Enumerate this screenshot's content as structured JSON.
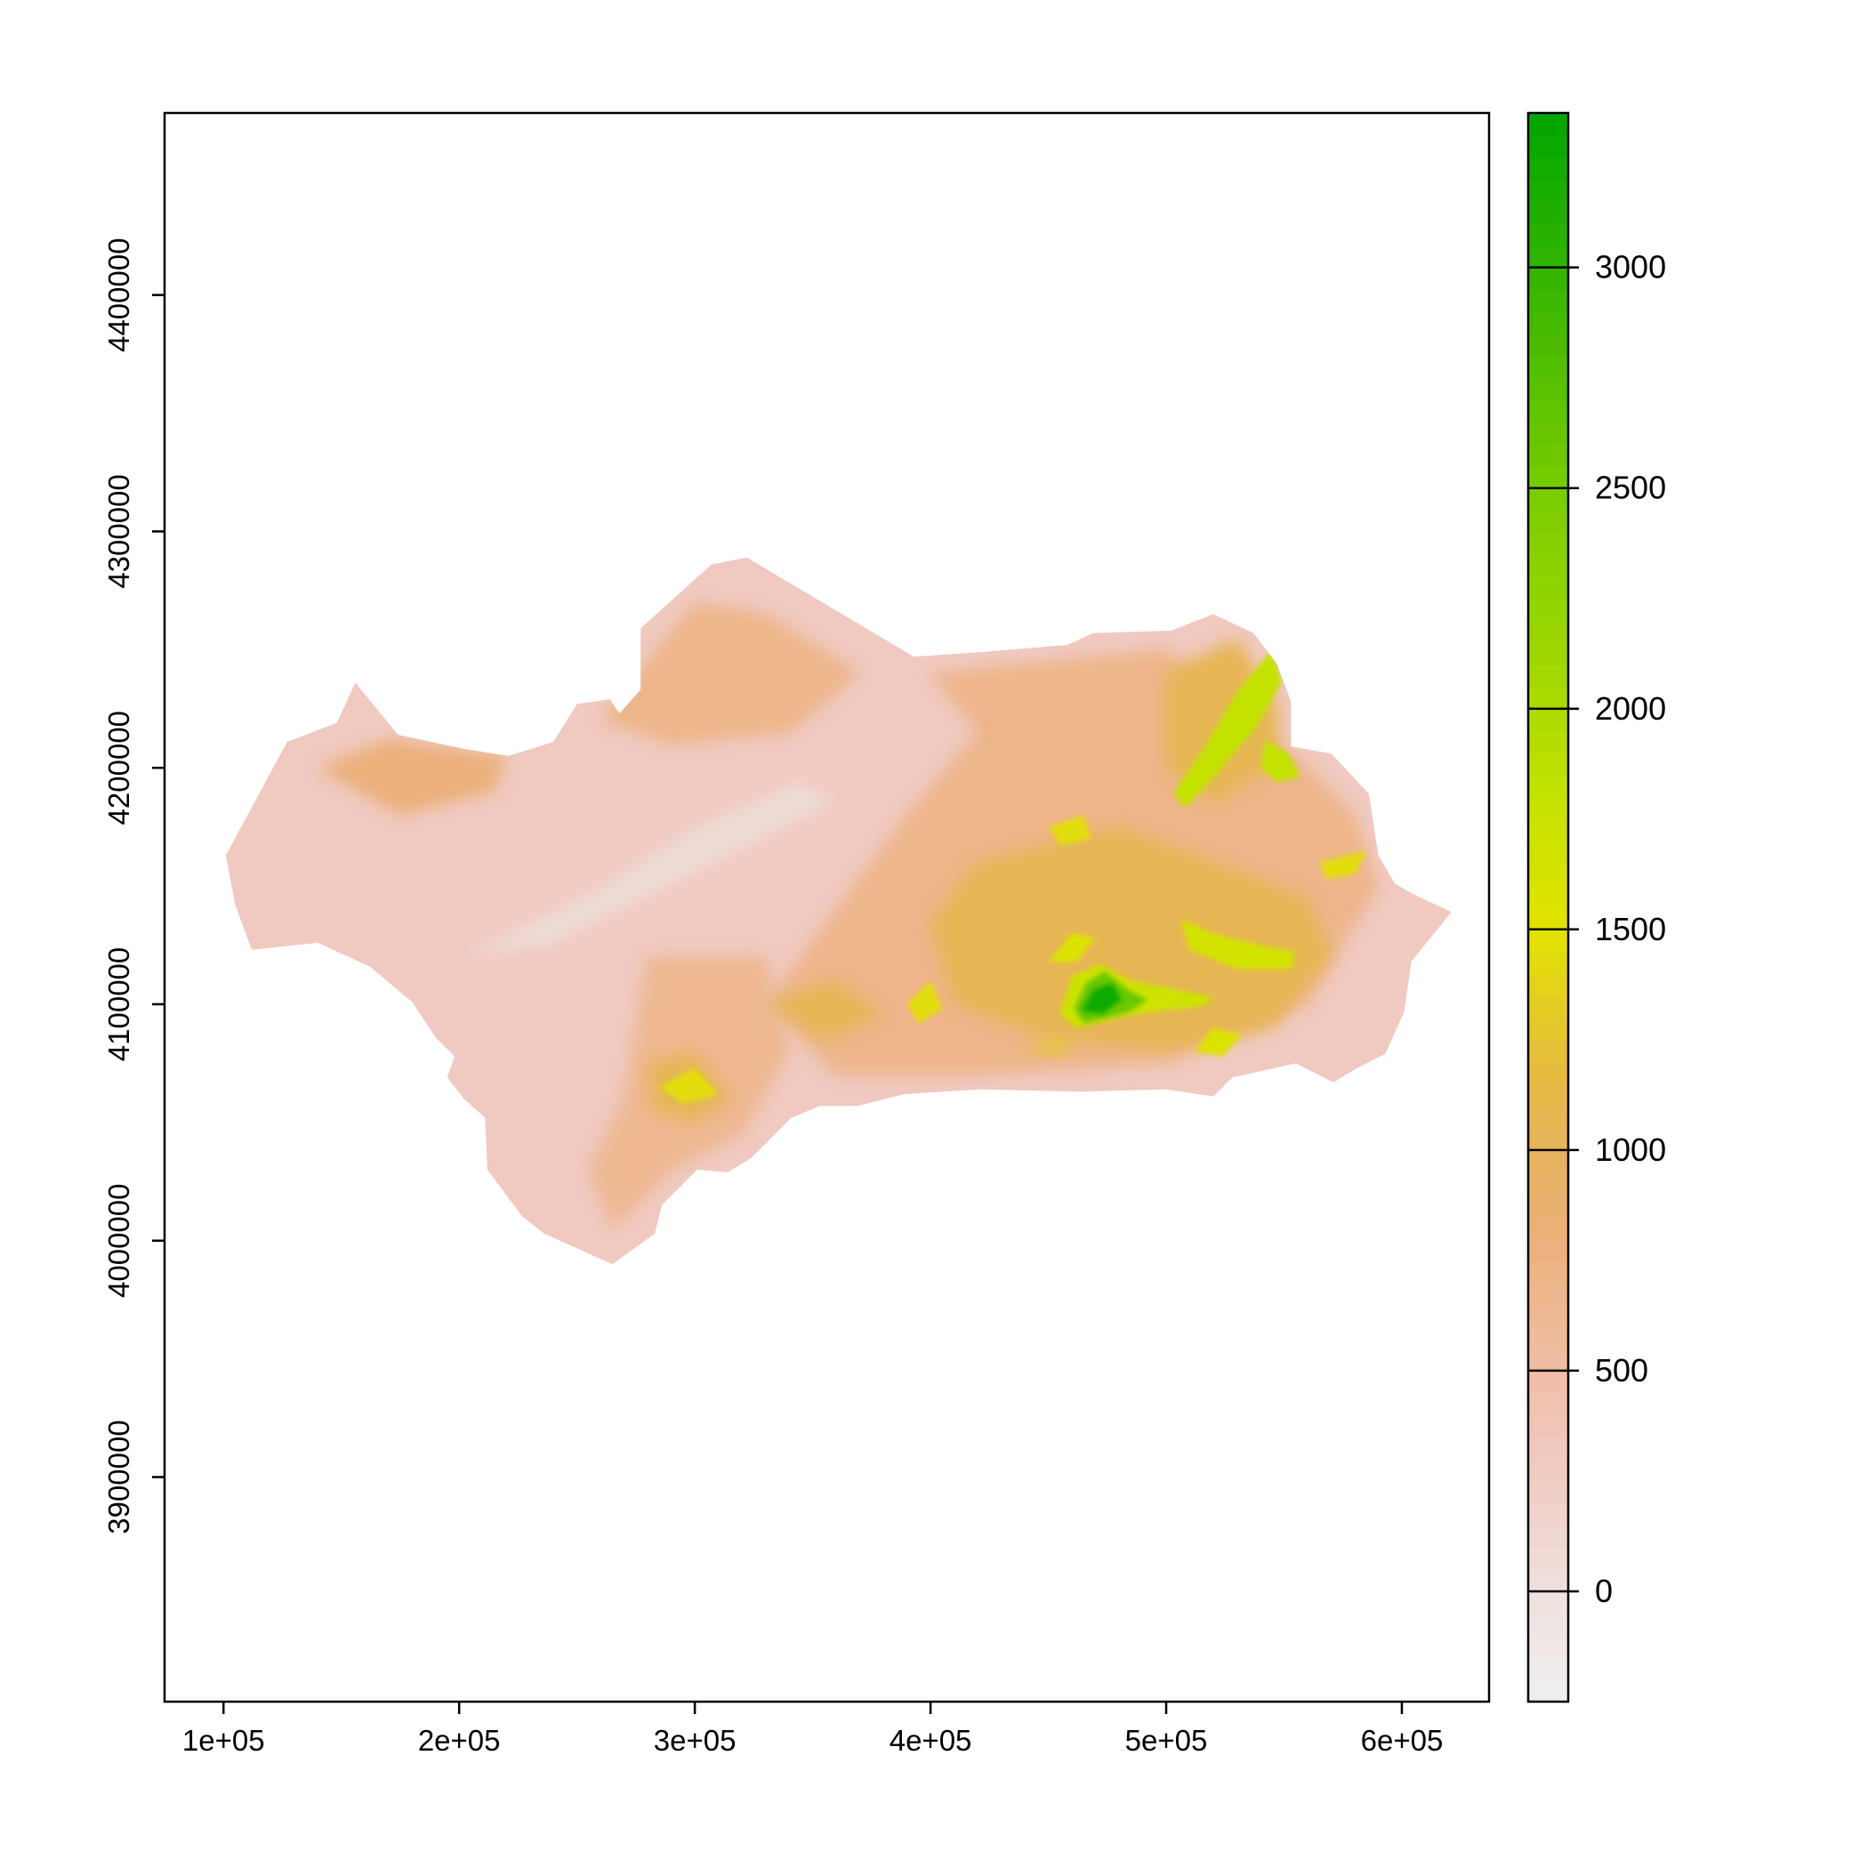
{
  "chart_data": {
    "type": "heatmap",
    "title": "",
    "xlabel": "",
    "ylabel": "",
    "x_ticks": [
      "1e+05",
      "2e+05",
      "3e+05",
      "4e+05",
      "5e+05",
      "6e+05"
    ],
    "x_tick_values": [
      100000,
      200000,
      300000,
      400000,
      500000,
      600000
    ],
    "y_ticks": [
      "3900000",
      "4000000",
      "4100000",
      "4200000",
      "4300000",
      "4400000"
    ],
    "y_tick_values": [
      3900000,
      4000000,
      4100000,
      4200000,
      4300000,
      4400000
    ],
    "xlim": [
      75000,
      637000
    ],
    "ylim": [
      3805000,
      4477000
    ],
    "legend": {
      "position": "right",
      "ticks": [
        "0",
        "500",
        "1000",
        "1500",
        "2000",
        "2500",
        "3000"
      ],
      "tick_values": [
        0,
        500,
        1000,
        1500,
        2000,
        2500,
        3000
      ],
      "range": [
        -250,
        3350
      ],
      "colors": {
        "-250": "#efefef",
        "0": "#efe0dd",
        "300": "#f0c9c0",
        "500": "#f1bea6",
        "800": "#ebb07a",
        "1000": "#e6b35d",
        "1200": "#e6bd3c",
        "1500": "#e2e300",
        "1800": "#c4e200",
        "2100": "#a0d800",
        "2500": "#78cc00",
        "3000": "#32b400",
        "3350": "#00a600"
      }
    },
    "region_outline": [
      [
        101000,
        4163000
      ],
      [
        127000,
        4211000
      ],
      [
        148000,
        4219000
      ],
      [
        156000,
        4236000
      ],
      [
        174000,
        4214000
      ],
      [
        202000,
        4208000
      ],
      [
        221000,
        4205000
      ],
      [
        240000,
        4211000
      ],
      [
        250000,
        4227000
      ],
      [
        264000,
        4229000
      ],
      [
        268000,
        4223000
      ],
      [
        277000,
        4233000
      ],
      [
        277000,
        4259000
      ],
      [
        307000,
        4286000
      ],
      [
        322000,
        4289000
      ],
      [
        393000,
        4247000
      ],
      [
        422000,
        4249000
      ],
      [
        458000,
        4252000
      ],
      [
        469000,
        4257000
      ],
      [
        502000,
        4258000
      ],
      [
        520000,
        4265000
      ],
      [
        537000,
        4257000
      ],
      [
        547000,
        4244000
      ],
      [
        553000,
        4228000
      ],
      [
        553000,
        4209000
      ],
      [
        570000,
        4206000
      ],
      [
        586000,
        4189000
      ],
      [
        590000,
        4163000
      ],
      [
        597000,
        4151000
      ],
      [
        604000,
        4147000
      ],
      [
        621000,
        4139000
      ],
      [
        604000,
        4118000
      ],
      [
        601000,
        4097000
      ],
      [
        593000,
        4079000
      ],
      [
        581000,
        4073000
      ],
      [
        571000,
        4067000
      ],
      [
        555000,
        4075000
      ],
      [
        528000,
        4069000
      ],
      [
        520000,
        4061000
      ],
      [
        500000,
        4064000
      ],
      [
        464000,
        4063000
      ],
      [
        421000,
        4064000
      ],
      [
        389000,
        4062000
      ],
      [
        369000,
        4057000
      ],
      [
        353000,
        4057000
      ],
      [
        341000,
        4052000
      ],
      [
        324000,
        4035000
      ],
      [
        314000,
        4029000
      ],
      [
        301000,
        4030000
      ],
      [
        286000,
        4015000
      ],
      [
        283000,
        4003000
      ],
      [
        265000,
        3990000
      ],
      [
        236000,
        4003000
      ],
      [
        227000,
        4010000
      ],
      [
        212000,
        4030000
      ],
      [
        211000,
        4052000
      ],
      [
        202000,
        4060000
      ],
      [
        195000,
        4069000
      ],
      [
        198000,
        4078000
      ],
      [
        190000,
        4086000
      ],
      [
        180000,
        4101000
      ],
      [
        162000,
        4116000
      ],
      [
        140000,
        4126000
      ],
      [
        112000,
        4123000
      ],
      [
        105000,
        4142000
      ]
    ],
    "elevation_zones": [
      {
        "value": 700,
        "points": [
          [
            260000,
            4220000
          ],
          [
            300000,
            4270000
          ],
          [
            330000,
            4265000
          ],
          [
            370000,
            4240000
          ],
          [
            340000,
            4215000
          ],
          [
            290000,
            4210000
          ]
        ]
      },
      {
        "value": 700,
        "points": [
          [
            400000,
            4240000
          ],
          [
            500000,
            4250000
          ],
          [
            540000,
            4220000
          ],
          [
            580000,
            4180000
          ],
          [
            590000,
            4150000
          ],
          [
            560000,
            4100000
          ],
          [
            500000,
            4075000
          ],
          [
            420000,
            4070000
          ],
          [
            360000,
            4070000
          ],
          [
            330000,
            4100000
          ],
          [
            360000,
            4140000
          ],
          [
            390000,
            4180000
          ],
          [
            420000,
            4215000
          ]
        ]
      },
      {
        "value": 650,
        "points": [
          [
            280000,
            4120000
          ],
          [
            330000,
            4120000
          ],
          [
            340000,
            4080000
          ],
          [
            320000,
            4045000
          ],
          [
            290000,
            4030000
          ],
          [
            265000,
            4005000
          ],
          [
            255000,
            4030000
          ],
          [
            270000,
            4060000
          ]
        ]
      },
      {
        "value": 800,
        "points": [
          [
            140000,
            4200000
          ],
          [
            170000,
            4212000
          ],
          [
            220000,
            4205000
          ],
          [
            215000,
            4190000
          ],
          [
            175000,
            4180000
          ]
        ]
      },
      {
        "value": 1050,
        "points": [
          [
            420000,
            4160000
          ],
          [
            480000,
            4175000
          ],
          [
            520000,
            4160000
          ],
          [
            560000,
            4145000
          ],
          [
            570000,
            4120000
          ],
          [
            545000,
            4090000
          ],
          [
            500000,
            4080000
          ],
          [
            450000,
            4085000
          ],
          [
            410000,
            4100000
          ],
          [
            400000,
            4135000
          ]
        ]
      },
      {
        "value": 1050,
        "points": [
          [
            500000,
            4240000
          ],
          [
            530000,
            4255000
          ],
          [
            548000,
            4225000
          ],
          [
            545000,
            4200000
          ],
          [
            520000,
            4185000
          ],
          [
            500000,
            4200000
          ]
        ]
      },
      {
        "value": 1050,
        "points": [
          [
            280000,
            4075000
          ],
          [
            300000,
            4080000
          ],
          [
            315000,
            4060000
          ],
          [
            300000,
            4050000
          ],
          [
            282000,
            4055000
          ]
        ]
      },
      {
        "value": 1050,
        "points": [
          [
            330000,
            4100000
          ],
          [
            360000,
            4110000
          ],
          [
            380000,
            4095000
          ],
          [
            355000,
            4085000
          ]
        ]
      },
      {
        "value": 1800,
        "points": [
          [
            503000,
            4189000
          ],
          [
            517000,
            4210000
          ],
          [
            530000,
            4232000
          ],
          [
            545000,
            4250000
          ],
          [
            549000,
            4236000
          ],
          [
            538000,
            4217000
          ],
          [
            521000,
            4197000
          ],
          [
            508000,
            4183000
          ]
        ]
      },
      {
        "value": 1800,
        "points": [
          [
            542000,
            4212000
          ],
          [
            552000,
            4206000
          ],
          [
            557000,
            4196000
          ],
          [
            547000,
            4194000
          ],
          [
            540000,
            4200000
          ]
        ]
      },
      {
        "value": 1650,
        "points": [
          [
            506000,
            4136000
          ],
          [
            520000,
            4130000
          ],
          [
            540000,
            4125000
          ],
          [
            555000,
            4122000
          ],
          [
            553000,
            4115000
          ],
          [
            530000,
            4115000
          ],
          [
            510000,
            4123000
          ]
        ]
      },
      {
        "value": 1700,
        "points": [
          [
            455000,
            4096000
          ],
          [
            460000,
            4112000
          ],
          [
            472000,
            4117000
          ],
          [
            485000,
            4110000
          ],
          [
            500000,
            4107000
          ],
          [
            520000,
            4103000
          ],
          [
            515000,
            4099000
          ],
          [
            495000,
            4097000
          ],
          [
            478000,
            4094000
          ],
          [
            462000,
            4090000
          ]
        ]
      },
      {
        "value": 2600,
        "points": [
          [
            461000,
            4098000
          ],
          [
            466000,
            4109000
          ],
          [
            474000,
            4114000
          ],
          [
            484000,
            4106000
          ],
          [
            492000,
            4102000
          ],
          [
            485000,
            4097000
          ],
          [
            474000,
            4094000
          ],
          [
            465000,
            4092000
          ]
        ]
      },
      {
        "value": 3250,
        "points": [
          [
            464000,
            4097000
          ],
          [
            469000,
            4106000
          ],
          [
            477000,
            4109000
          ],
          [
            481000,
            4102000
          ],
          [
            473000,
            4096000
          ]
        ]
      },
      {
        "value": 1550,
        "points": [
          [
            450000,
            4118000
          ],
          [
            460000,
            4130000
          ],
          [
            470000,
            4128000
          ],
          [
            462000,
            4118000
          ]
        ]
      },
      {
        "value": 1550,
        "points": [
          [
            512000,
            4080000
          ],
          [
            520000,
            4090000
          ],
          [
            532000,
            4087000
          ],
          [
            524000,
            4078000
          ]
        ]
      },
      {
        "value": 1450,
        "points": [
          [
            285000,
            4065000
          ],
          [
            300000,
            4073000
          ],
          [
            310000,
            4062000
          ],
          [
            295000,
            4058000
          ]
        ]
      },
      {
        "value": 1450,
        "points": [
          [
            450000,
            4175000
          ],
          [
            465000,
            4180000
          ],
          [
            468000,
            4170000
          ],
          [
            455000,
            4167000
          ]
        ]
      },
      {
        "value": 1450,
        "points": [
          [
            390000,
            4100000
          ],
          [
            400000,
            4110000
          ],
          [
            405000,
            4098000
          ],
          [
            395000,
            4092000
          ]
        ]
      },
      {
        "value": 1450,
        "points": [
          [
            565000,
            4160000
          ],
          [
            585000,
            4165000
          ],
          [
            580000,
            4155000
          ],
          [
            568000,
            4153000
          ]
        ]
      },
      {
        "value": 1300,
        "points": [
          [
            440000,
            4082000
          ],
          [
            460000,
            4086000
          ],
          [
            455000,
            4078000
          ]
        ]
      },
      {
        "value": 80,
        "points": [
          [
            200000,
            4120000
          ],
          [
            260000,
            4150000
          ],
          [
            300000,
            4175000
          ],
          [
            345000,
            4195000
          ],
          [
            360000,
            4185000
          ],
          [
            320000,
            4165000
          ],
          [
            280000,
            4145000
          ],
          [
            240000,
            4125000
          ]
        ]
      }
    ]
  }
}
